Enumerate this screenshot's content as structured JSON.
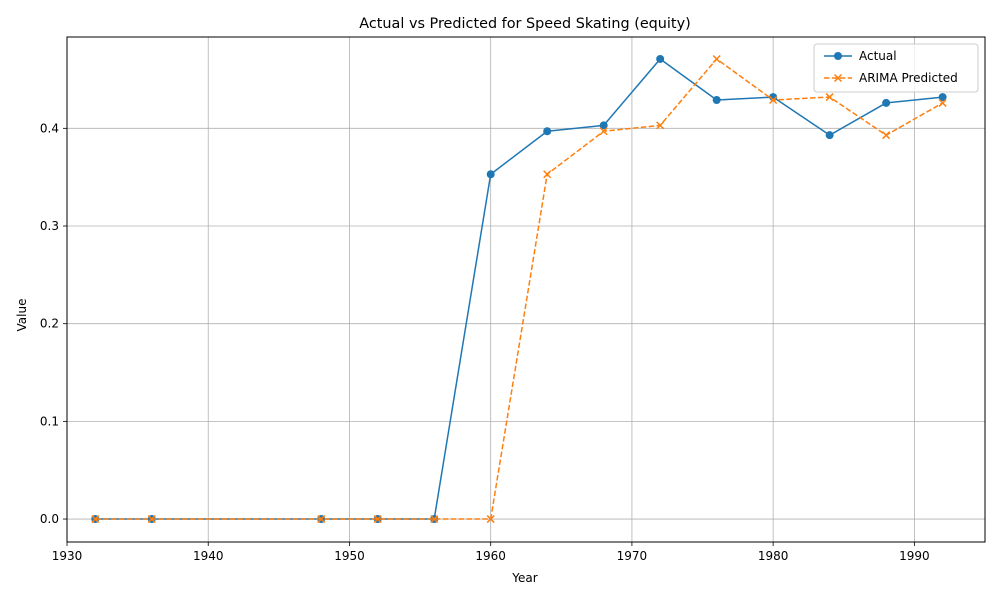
{
  "chart_data": {
    "type": "line",
    "title": "Actual vs Predicted for Speed Skating (equity)",
    "xlabel": "Year",
    "ylabel": "Value",
    "xlim": [
      1930,
      1995
    ],
    "ylim": [
      -0.0235,
      0.4935
    ],
    "xticks": [
      1930,
      1940,
      1950,
      1960,
      1970,
      1980,
      1990
    ],
    "yticks": [
      0.0,
      0.1,
      0.2,
      0.3,
      0.4
    ],
    "ytick_labels": [
      "0.0",
      "0.1",
      "0.2",
      "0.3",
      "0.4"
    ],
    "grid": true,
    "legend_position": "top-right",
    "x": [
      1932,
      1936,
      1948,
      1952,
      1956,
      1960,
      1964,
      1968,
      1972,
      1976,
      1980,
      1984,
      1988,
      1992
    ],
    "series": [
      {
        "name": "Actual",
        "color": "#1f77b4",
        "line_style": "solid",
        "marker": "circle",
        "values": [
          0.0,
          0.0,
          0.0,
          0.0,
          0.0,
          0.353,
          0.397,
          0.403,
          0.471,
          0.429,
          0.432,
          0.393,
          0.426,
          0.432
        ]
      },
      {
        "name": "ARIMA Predicted",
        "color": "#ff7f0e",
        "line_style": "dashed",
        "marker": "x",
        "values": [
          0.0,
          0.0,
          0.0,
          0.0,
          0.0,
          0.0,
          0.353,
          0.397,
          0.403,
          0.471,
          0.429,
          0.432,
          0.393,
          0.426
        ]
      }
    ]
  }
}
